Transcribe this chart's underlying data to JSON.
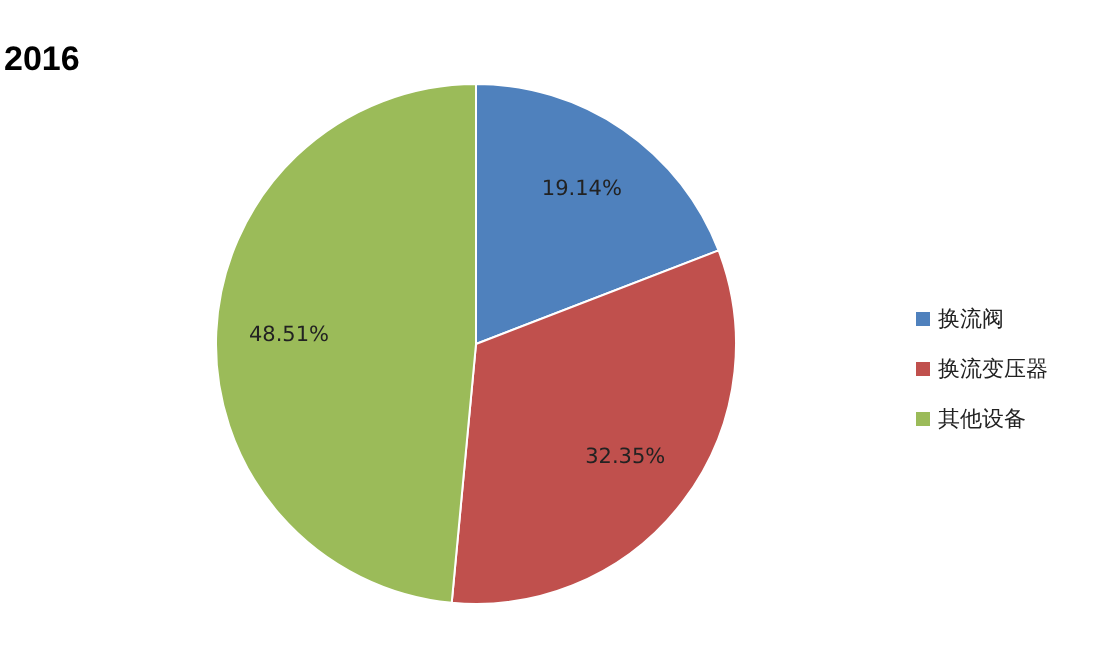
{
  "chart_data": {
    "type": "pie",
    "title": "2016",
    "categories": [
      "换流阀",
      "换流变压器",
      "其他设备"
    ],
    "values": [
      19.14,
      32.35,
      48.51
    ],
    "colors": [
      "#4f81bd",
      "#c0504d",
      "#9bbb59"
    ],
    "value_labels": [
      "19.14%",
      "32.35%",
      "48.51%"
    ],
    "legend": "right"
  }
}
